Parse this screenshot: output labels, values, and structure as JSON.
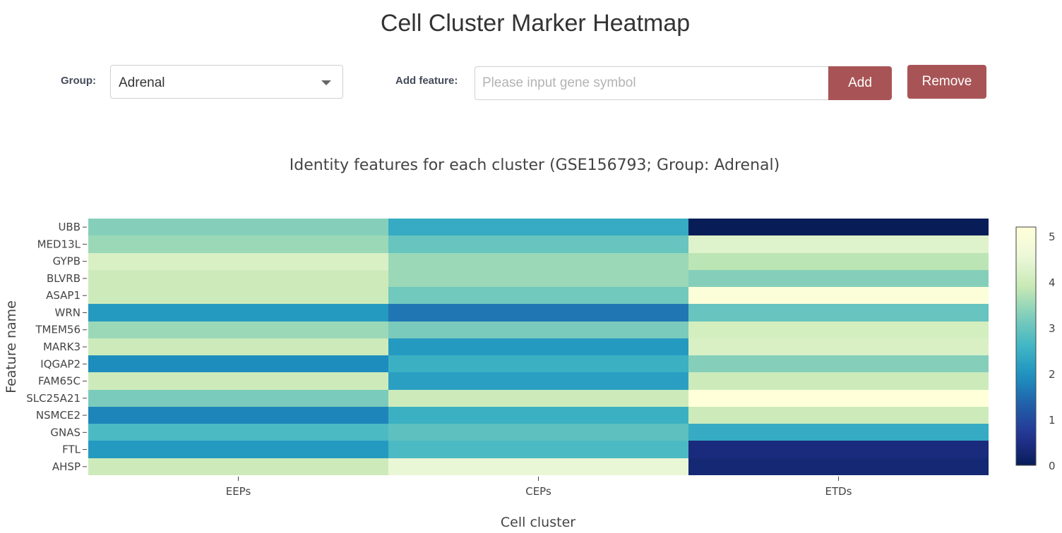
{
  "page": {
    "title": "Cell Cluster Marker Heatmap"
  },
  "controls": {
    "group_label": "Group:",
    "group_value": "Adrenal",
    "feature_label": "Add feature:",
    "feature_placeholder": "Please input gene symbol",
    "feature_value": "",
    "add_label": "Add",
    "remove_label": "Remove"
  },
  "colors": {
    "button": "#a85456",
    "colormap": "YlGnBu"
  },
  "chart_data": {
    "type": "heatmap",
    "title": "Identity features for each cluster (GSE156793; Group: Adrenal)",
    "xlabel": "Cell cluster",
    "ylabel": "Feature name",
    "x": [
      "EEPs",
      "CEPs",
      "ETDs"
    ],
    "y": [
      "UBB",
      "MED13L",
      "GYPB",
      "BLVRB",
      "ASAP1",
      "WRN",
      "TMEM56",
      "MARK3",
      "IQGAP2",
      "FAM65C",
      "SLC25A21",
      "NSMCE2",
      "GNAS",
      "FTL",
      "AHSP"
    ],
    "z": [
      [
        3.3,
        2.4,
        0.0
      ],
      [
        3.5,
        3.0,
        4.3
      ],
      [
        4.2,
        3.5,
        3.8
      ],
      [
        4.0,
        3.5,
        3.3
      ],
      [
        4.0,
        3.1,
        5.1
      ],
      [
        2.1,
        1.6,
        3.0
      ],
      [
        3.5,
        3.2,
        4.1
      ],
      [
        4.0,
        2.1,
        4.2
      ],
      [
        1.9,
        2.5,
        3.3
      ],
      [
        4.0,
        2.2,
        4.0
      ],
      [
        3.2,
        4.0,
        5.2
      ],
      [
        1.8,
        2.5,
        4.0
      ],
      [
        2.7,
        2.9,
        2.4
      ],
      [
        2.1,
        2.7,
        0.4
      ],
      [
        4.0,
        4.5,
        0.3
      ]
    ],
    "zmin": 0,
    "zmax": 5.2,
    "colorbar_ticks": [
      0,
      1,
      2,
      3,
      4,
      5
    ]
  }
}
